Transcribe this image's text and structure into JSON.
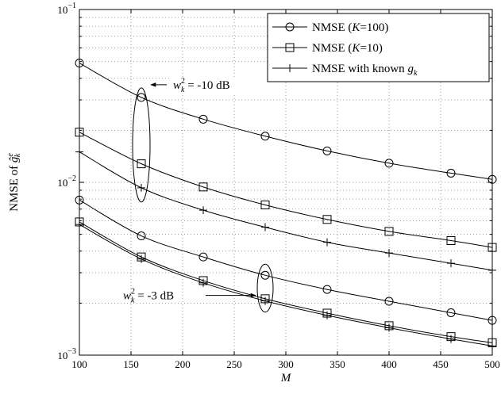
{
  "chart_data": {
    "type": "line",
    "xlabel": "M",
    "ylabel": "NMSE of",
    "ylabel_math": "ĝ",
    "ylabel_sup": "e",
    "ylabel_sub": "k",
    "xlim": [
      100,
      500
    ],
    "ylim": [
      0.001,
      0.1
    ],
    "yscale": "log",
    "grid": true,
    "legend_position": "top-right",
    "x_ticks": [
      "100",
      "150",
      "200",
      "250",
      "300",
      "350",
      "400",
      "450",
      "500"
    ],
    "y_ticks": [
      {
        "value": 0.001,
        "base": "10",
        "exp": "−3"
      },
      {
        "value": 0.01,
        "base": "10",
        "exp": "−2"
      },
      {
        "value": 0.1,
        "base": "10",
        "exp": "−1"
      }
    ],
    "x": [
      100,
      160,
      220,
      280,
      340,
      400,
      460,
      500
    ],
    "series": [
      {
        "name": "NMSE (K=100)",
        "legend_pre": "NMSE (",
        "legend_var": "K",
        "legend_post": "=100)",
        "marker": "circle",
        "group": "w_k^2 = -10 dB",
        "values": [
          0.049,
          0.031,
          0.0232,
          0.0185,
          0.0152,
          0.0129,
          0.0113,
          0.0104
        ]
      },
      {
        "name": "NMSE (K=10)",
        "legend_pre": "NMSE (",
        "legend_var": "K",
        "legend_post": "=10)",
        "marker": "square",
        "group": "w_k^2 = -10 dB",
        "values": [
          0.0195,
          0.0128,
          0.0094,
          0.0074,
          0.0061,
          0.0052,
          0.0046,
          0.0042
        ]
      },
      {
        "name": "NMSE with known g_k",
        "legend_pre": "NMSE with known ",
        "legend_var": "g",
        "legend_sub": "k",
        "legend_post": "",
        "marker": "plus",
        "group": "w_k^2 = -10 dB",
        "values": [
          0.015,
          0.0093,
          0.0069,
          0.0055,
          0.0045,
          0.0039,
          0.0034,
          0.0031
        ]
      },
      {
        "name": "NMSE (K=100)",
        "marker": "circle",
        "group": "w_k^2 = -3 dB",
        "values": [
          0.0079,
          0.0049,
          0.0037,
          0.0029,
          0.0024,
          0.00205,
          0.00176,
          0.00159
        ]
      },
      {
        "name": "NMSE (K=10)",
        "marker": "square",
        "group": "w_k^2 = -3 dB",
        "values": [
          0.0059,
          0.0037,
          0.0027,
          0.00212,
          0.00175,
          0.00148,
          0.00128,
          0.00118
        ]
      },
      {
        "name": "NMSE with known g_k",
        "marker": "plus",
        "group": "w_k^2 = -3 dB",
        "values": [
          0.0057,
          0.0036,
          0.00262,
          0.00206,
          0.0017,
          0.00144,
          0.00124,
          0.00113
        ]
      }
    ],
    "annotations": [
      {
        "text": "w_k^2 = -10 dB",
        "var": "w",
        "sup": "2",
        "sub": "k",
        "rest": " = -10 dB"
      },
      {
        "text": "w_k^2 = -3 dB",
        "var": "w",
        "sup": "2",
        "sub": "k",
        "rest": " = -3 dB"
      }
    ]
  }
}
